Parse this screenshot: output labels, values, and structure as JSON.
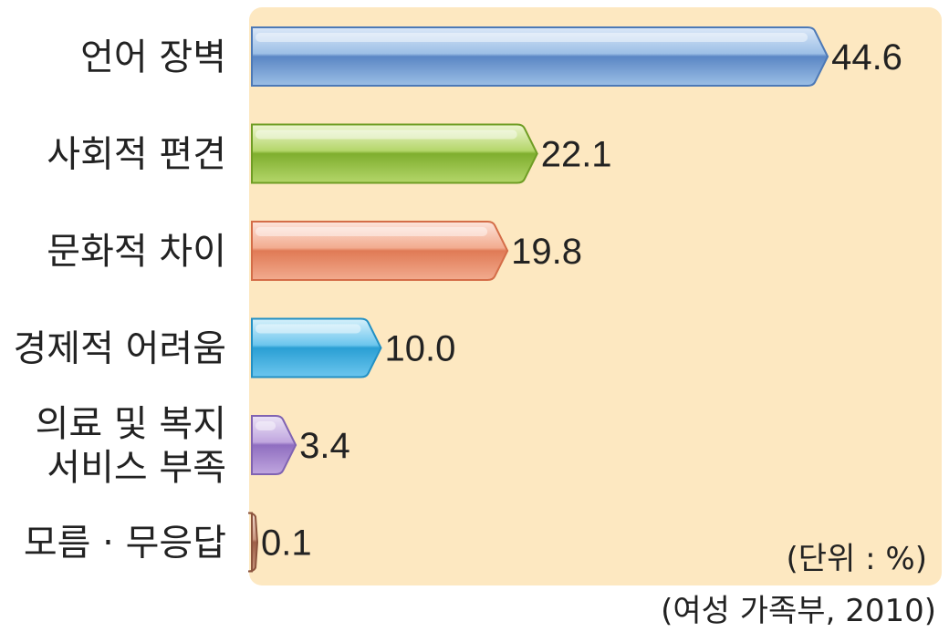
{
  "chart_data": {
    "type": "bar",
    "orientation": "horizontal",
    "categories": [
      [
        "언어 장벽"
      ],
      [
        "사회적 편견"
      ],
      [
        "문화적 차이"
      ],
      [
        "경제적 어려움"
      ],
      [
        "의료 및 복지",
        "서비스 부족"
      ],
      [
        "모름 · 무응답"
      ]
    ],
    "values": [
      44.6,
      22.1,
      19.8,
      10.0,
      3.4,
      0.1
    ],
    "value_labels": [
      "44.6",
      "22.1",
      "19.8",
      "10.0",
      "3.4",
      "0.1"
    ],
    "xlim": [
      0,
      50
    ],
    "grid": false,
    "legend": "none",
    "unit_note": "(단위 : %)",
    "source": "(여성 가족부, 2010)",
    "colors": {
      "plot_background": "#fde8c1",
      "bars": [
        {
          "top": "#dbe8f8",
          "mid": "#9cbfe6",
          "bottom": "#5a86c4",
          "stroke": "#4d79b6"
        },
        {
          "top": "#eef6d2",
          "mid": "#b4d66a",
          "bottom": "#7fae2e",
          "stroke": "#6f9d24"
        },
        {
          "top": "#fde4da",
          "mid": "#f2ab8f",
          "bottom": "#e07a55",
          "stroke": "#d46d48"
        },
        {
          "top": "#d7f1fb",
          "mid": "#6cc6ee",
          "bottom": "#2a9fd4",
          "stroke": "#2290c4"
        },
        {
          "top": "#ece4f6",
          "mid": "#c0a6df",
          "bottom": "#8f6ec0",
          "stroke": "#8063b2"
        },
        {
          "top": "#f3ddd2",
          "mid": "#c9957e",
          "bottom": "#9e6048",
          "stroke": "#8c543e"
        }
      ]
    }
  }
}
